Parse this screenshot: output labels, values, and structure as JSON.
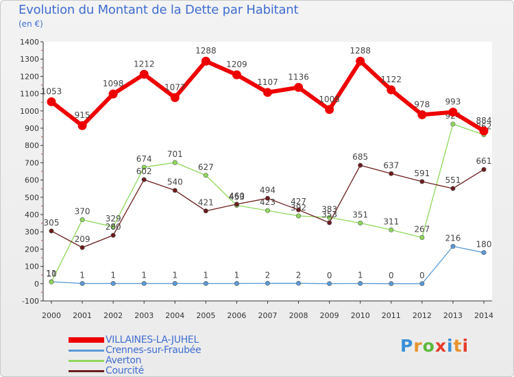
{
  "title": "Evolution du Montant de la Dette par Habitant",
  "subtitle": "(en €)",
  "brand": {
    "text": "Proxiti",
    "letter_colors": [
      "#3a8fd8",
      "#e8922c",
      "#5db83c",
      "#e63c2c",
      "#3a8fd8",
      "#e8922c",
      "#e63c2c"
    ]
  },
  "chart_data": {
    "type": "line",
    "x": [
      "2000",
      "2001",
      "2002",
      "2003",
      "2004",
      "2005",
      "2006",
      "2007",
      "2008",
      "2009",
      "2010",
      "2011",
      "2012",
      "2013",
      "2014"
    ],
    "ylim": [
      -100,
      1400
    ],
    "yticks": [
      -100,
      0,
      100,
      200,
      300,
      400,
      500,
      600,
      700,
      800,
      900,
      1000,
      1100,
      1200,
      1300,
      1400
    ],
    "grid": false,
    "legend_position": "bottom-left",
    "series": [
      {
        "name": "VILLAINES-LA-JUHEL",
        "color": "#ee0000",
        "values": [
          1053,
          915,
          1098,
          1212,
          1077,
          1288,
          1209,
          1107,
          1136,
          1008,
          1288,
          1122,
          978,
          993,
          884
        ],
        "labels": [
          "1053",
          "915",
          "1098",
          "1212",
          "1077",
          "1288",
          "1209",
          "1107",
          "1136",
          "1008",
          "1288",
          "1122",
          "978",
          "993",
          "884"
        ]
      },
      {
        "name": "Crennes-sur-Fraubée",
        "color": "#5b9ad6",
        "values": [
          11,
          1,
          1,
          1,
          1,
          1,
          1,
          2,
          2,
          0,
          1,
          0,
          0,
          216,
          180
        ],
        "labels": [
          "11",
          "1",
          "1",
          "1",
          "1",
          "1",
          "1",
          "2",
          "2",
          "0",
          "1",
          "0",
          "0",
          "216",
          "180"
        ]
      },
      {
        "name": "Averton",
        "color": "#8ed85a",
        "values": [
          10,
          370,
          329,
          674,
          701,
          627,
          453,
          423,
          392,
          383,
          351,
          311,
          267,
          924,
          862
        ],
        "labels": [
          "10",
          "370",
          "329",
          "674",
          "701",
          "627",
          "453",
          "423",
          "392",
          "383",
          "351",
          "311",
          "267",
          "924",
          "862"
        ]
      },
      {
        "name": "Courcité",
        "color": "#6b1c1c",
        "values": [
          305,
          209,
          280,
          602,
          540,
          421,
          460,
          494,
          427,
          353,
          685,
          637,
          591,
          551,
          661
        ],
        "labels": [
          "305",
          "209",
          "280",
          "602",
          "540",
          "421",
          "460",
          "494",
          "427",
          "353",
          "685",
          "637",
          "591",
          "551",
          "661"
        ]
      }
    ]
  }
}
